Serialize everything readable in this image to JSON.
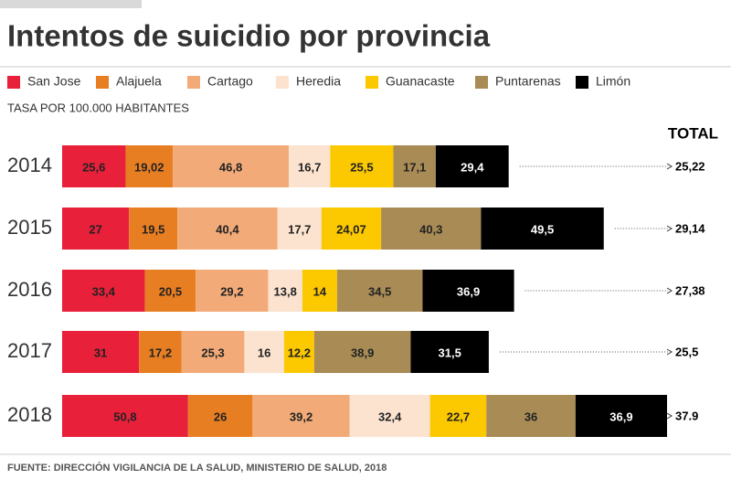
{
  "chart_data": {
    "type": "bar",
    "orientation": "horizontal",
    "stacked": true,
    "title": "Intentos de suicidio por provincia",
    "subtitle": "TASA POR 100.000 HABITANTES",
    "categories": [
      "2014",
      "2015",
      "2016",
      "2017",
      "2018"
    ],
    "series": [
      {
        "name": "San Jose",
        "color": "#e8203a",
        "values": [
          25.6,
          27,
          33.4,
          31,
          50.8
        ],
        "value_labels": [
          "25,6",
          "27",
          "33,4",
          "31",
          "50,8"
        ]
      },
      {
        "name": "Alajuela",
        "color": "#e87e22",
        "values": [
          19.02,
          19.5,
          20.5,
          17.2,
          26
        ],
        "value_labels": [
          "19,02",
          "19,5",
          "20,5",
          "17,2",
          "26"
        ]
      },
      {
        "name": "Cartago",
        "color": "#f2ab78",
        "values": [
          46.8,
          40.4,
          29.2,
          25.3,
          39.2
        ],
        "value_labels": [
          "46,8",
          "40,4",
          "29,2",
          "25,3",
          "39,2"
        ]
      },
      {
        "name": "Heredia",
        "color": "#fbe3cf",
        "values": [
          16.7,
          17.7,
          13.8,
          16,
          32.4
        ],
        "value_labels": [
          "16,7",
          "17,7",
          "13,8",
          "16",
          "32,4"
        ]
      },
      {
        "name": "Guanacaste",
        "color": "#fcc800",
        "values": [
          25.5,
          24.07,
          14,
          12.2,
          22.7
        ],
        "value_labels": [
          "25,5",
          "24,07",
          "14",
          "12,2",
          "22,7"
        ]
      },
      {
        "name": "Puntarenas",
        "color": "#a88b55",
        "values": [
          17.1,
          40.3,
          34.5,
          38.9,
          36
        ],
        "value_labels": [
          "17,1",
          "40,3",
          "34,5",
          "38,9",
          "36"
        ]
      },
      {
        "name": "Limón",
        "color": "#000000",
        "values": [
          29.4,
          49.5,
          36.9,
          31.5,
          36.9
        ],
        "value_labels": [
          "29,4",
          "49,5",
          "36,9",
          "31,5",
          "36,9"
        ]
      }
    ],
    "totals": {
      "title": "TOTAL",
      "values": [
        25.22,
        29.14,
        27.38,
        25.5,
        37.9
      ],
      "value_labels": [
        "25,22",
        "29,14",
        "27,38",
        "25,5",
        "37.9"
      ]
    },
    "source": "FUENTE: DIRECCIÓN VIGILANCIA DE LA SALUD, MINISTERIO DE SALUD, 2018"
  }
}
